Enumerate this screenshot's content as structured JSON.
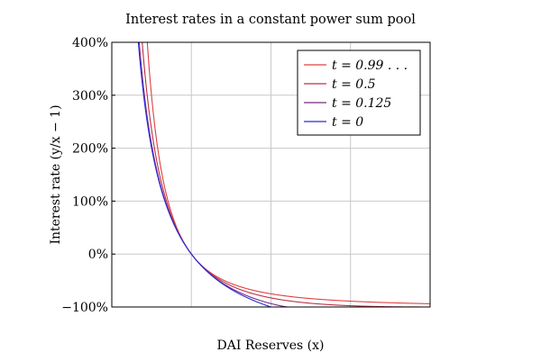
{
  "chart_data": {
    "type": "line",
    "title": "Interest rates in a constant power sum pool",
    "xlabel": "DAI Reserves (x)",
    "ylabel": "Interest rate (y/x − 1)",
    "xlim": [
      0,
      4
    ],
    "ylim": [
      -100,
      400
    ],
    "y_ticks": [
      "400%",
      "300%",
      "200%",
      "100%",
      "0%",
      "−100%"
    ],
    "y_tick_values": [
      400,
      300,
      200,
      100,
      0,
      -100
    ],
    "x_grid": [
      1,
      2,
      3
    ],
    "grid": true,
    "legend_position": "top-right",
    "series": [
      {
        "name": "t = 0.99 . . .",
        "t": 0.99,
        "color": "#e04040"
      },
      {
        "name": "t = 0.5",
        "t": 0.5,
        "color": "#b8304a"
      },
      {
        "name": "t = 0.125",
        "t": 0.125,
        "color": "#7a2a82"
      },
      {
        "name": "t = 0",
        "t": 0.0,
        "color": "#2a2ad8"
      }
    ]
  }
}
